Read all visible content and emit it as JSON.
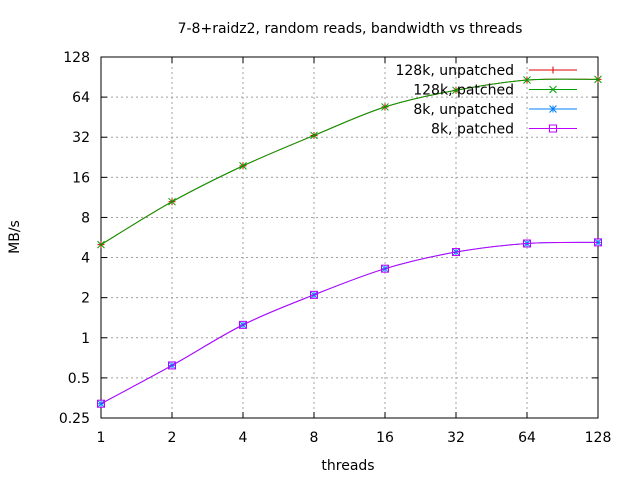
{
  "chart_data": {
    "type": "line",
    "title": "7-8+raidz2, random reads, bandwidth vs threads",
    "xlabel": "threads",
    "ylabel": "MB/s",
    "x_scale": "log2",
    "y_scale": "log2",
    "x": [
      1,
      2,
      4,
      8,
      16,
      32,
      64,
      128
    ],
    "x_ticks": [
      "1",
      "2",
      "4",
      "8",
      "16",
      "32",
      "64",
      "128"
    ],
    "y_ticks": [
      "0.25",
      "0.5",
      "1",
      "2",
      "4",
      "8",
      "16",
      "32",
      "64",
      "128"
    ],
    "y_tick_values": [
      0.25,
      0.5,
      1,
      2,
      4,
      8,
      16,
      32,
      64,
      128
    ],
    "xlim": [
      1,
      128
    ],
    "ylim": [
      0.25,
      128
    ],
    "grid": true,
    "legend_position": "top-right",
    "series": [
      {
        "name": "128k, unpatched",
        "color": "#e00000",
        "marker": "plus",
        "values": [
          5.0,
          10.5,
          19.5,
          33,
          54,
          72,
          86,
          87
        ]
      },
      {
        "name": "128k, patched",
        "color": "#00a000",
        "marker": "cross",
        "values": [
          5.0,
          10.5,
          19.5,
          33,
          54,
          72,
          86,
          87
        ]
      },
      {
        "name": "8k, unpatched",
        "color": "#0080ff",
        "marker": "star",
        "values": [
          0.32,
          0.62,
          1.25,
          2.1,
          3.3,
          4.4,
          5.1,
          5.2
        ]
      },
      {
        "name": "8k, patched",
        "color": "#c000ff",
        "marker": "square",
        "values": [
          0.32,
          0.62,
          1.25,
          2.1,
          3.3,
          4.4,
          5.1,
          5.2
        ]
      }
    ]
  }
}
